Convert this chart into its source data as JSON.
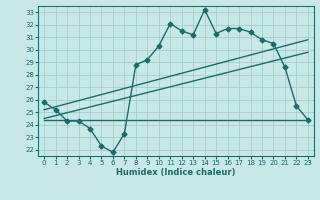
{
  "xlabel": "Humidex (Indice chaleur)",
  "bg_color": "#c8e8e8",
  "line_color": "#1a6b6b",
  "xlim": [
    -0.5,
    23.5
  ],
  "ylim": [
    21.5,
    33.5
  ],
  "xticks": [
    0,
    1,
    2,
    3,
    4,
    5,
    6,
    7,
    8,
    9,
    10,
    11,
    12,
    13,
    14,
    15,
    16,
    17,
    18,
    19,
    20,
    21,
    22,
    23
  ],
  "yticks": [
    22,
    23,
    24,
    25,
    26,
    27,
    28,
    29,
    30,
    31,
    32,
    33
  ],
  "main_line_x": [
    0,
    1,
    2,
    3,
    4,
    5,
    6,
    7,
    8,
    9,
    10,
    11,
    12,
    13,
    14,
    15,
    16,
    17,
    18,
    19,
    20,
    21,
    22,
    23
  ],
  "main_line_y": [
    25.8,
    25.2,
    24.3,
    24.3,
    23.7,
    22.3,
    21.8,
    23.3,
    28.8,
    29.2,
    30.3,
    32.1,
    31.5,
    31.2,
    33.2,
    31.3,
    31.7,
    31.7,
    31.4,
    30.8,
    30.5,
    28.6,
    25.5,
    24.4
  ],
  "trend1_x": [
    0,
    23
  ],
  "trend1_y": [
    25.2,
    30.8
  ],
  "trend2_x": [
    0,
    23
  ],
  "trend2_y": [
    24.5,
    29.8
  ],
  "flat_line_x": [
    0,
    23
  ],
  "flat_line_y": [
    24.4,
    24.4
  ],
  "grid_color": "#a0c8c8",
  "line_width": 1.0,
  "marker_size": 2.5
}
